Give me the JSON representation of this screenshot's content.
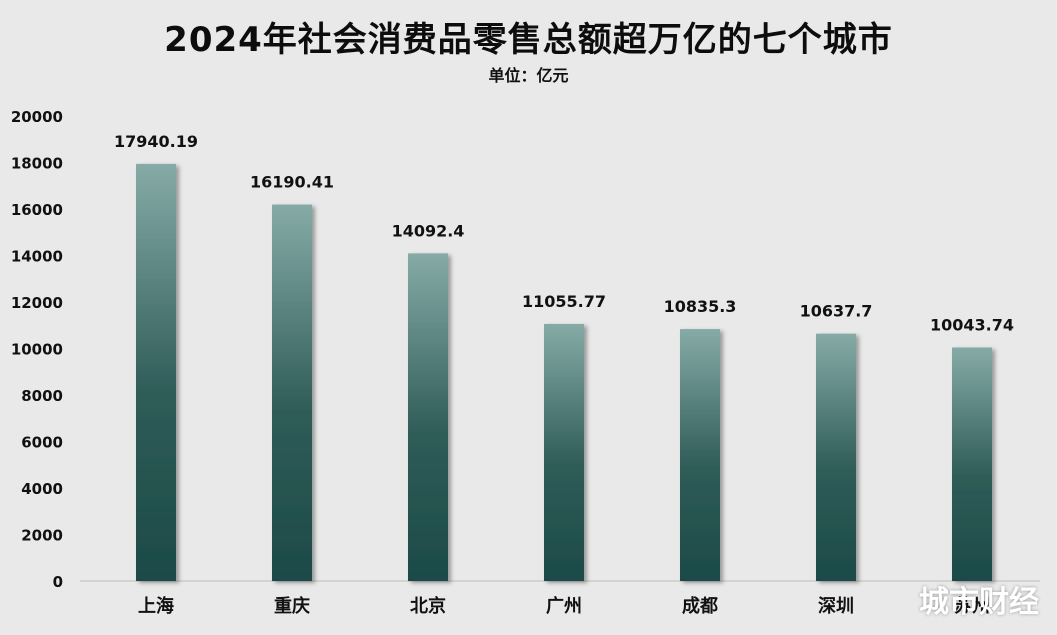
{
  "chart_data": {
    "type": "bar",
    "title": "2024年社会消费品零售总额超万亿的七个城市",
    "subtitle": "单位：亿元",
    "categories": [
      "上海",
      "重庆",
      "北京",
      "广州",
      "成都",
      "深圳",
      "苏州"
    ],
    "values": [
      17940.19,
      16190.41,
      14092.4,
      11055.77,
      10835.3,
      10637.7,
      10043.74
    ],
    "data_labels": [
      "17940.19",
      "16190.41",
      "14092.4",
      "11055.77",
      "10835.3",
      "10637.7",
      "10043.74"
    ],
    "ylim": [
      0,
      20000
    ],
    "yticks": [
      0,
      2000,
      4000,
      6000,
      8000,
      10000,
      12000,
      14000,
      16000,
      18000,
      20000
    ],
    "grid": false,
    "legend": "none",
    "colors": {
      "bar_top": "#86aba7",
      "bar_bottom": "#1c4a47",
      "background": "#e9e9e9"
    }
  },
  "watermark": "城市财经"
}
